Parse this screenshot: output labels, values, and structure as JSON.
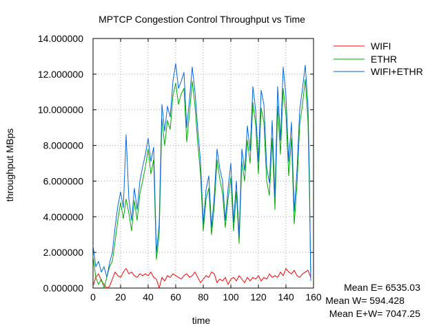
{
  "chart_data": {
    "type": "line",
    "title": "MPTCP Congestion Control Throughput vs Time",
    "xlabel": "time",
    "ylabel": "throughput MBps",
    "xlim": [
      0,
      160
    ],
    "ylim": [
      0,
      14
    ],
    "x_ticks": [
      "0",
      "20",
      "40",
      "60",
      "80",
      "100",
      "120",
      "140",
      "160"
    ],
    "y_ticks": [
      "0.000000",
      "2.000000",
      "4.000000",
      "6.000000",
      "8.000000",
      "10.000000",
      "12.000000",
      "14.000000"
    ],
    "grid": true,
    "legend_position": "top-right outside",
    "series": [
      {
        "name": "WIFI",
        "color": "#ff0000",
        "x": [
          0,
          2,
          4,
          6,
          8,
          10,
          12,
          14,
          16,
          18,
          20,
          22,
          24,
          26,
          28,
          30,
          32,
          34,
          36,
          38,
          40,
          42,
          44,
          46,
          48,
          50,
          52,
          54,
          56,
          58,
          60,
          62,
          64,
          66,
          68,
          70,
          72,
          74,
          76,
          78,
          80,
          82,
          84,
          86,
          88,
          90,
          92,
          94,
          96,
          98,
          100,
          102,
          104,
          106,
          108,
          110,
          112,
          114,
          116,
          118,
          120,
          122,
          124,
          126,
          128,
          130,
          132,
          134,
          136,
          138,
          140,
          142,
          144,
          146,
          148,
          150,
          152,
          154,
          156,
          157,
          158
        ],
        "values": [
          0.1,
          0.6,
          0.8,
          0.4,
          0.2,
          0.0,
          0.1,
          0.5,
          0.9,
          0.7,
          0.6,
          0.9,
          1.1,
          0.8,
          0.9,
          0.7,
          0.6,
          0.8,
          0.7,
          0.8,
          0.7,
          0.9,
          0.6,
          0.5,
          0.0,
          0.6,
          0.4,
          0.7,
          0.6,
          0.8,
          0.7,
          0.6,
          0.5,
          0.7,
          0.8,
          0.6,
          0.7,
          0.9,
          0.6,
          0.3,
          0.5,
          0.7,
          0.6,
          0.9,
          0.8,
          0.3,
          0.5,
          0.4,
          0.6,
          0.2,
          0.5,
          0.6,
          0.4,
          0.7,
          0.5,
          0.3,
          0.6,
          0.4,
          0.6,
          0.5,
          0.7,
          0.4,
          0.6,
          0.5,
          0.8,
          0.6,
          0.7,
          0.6,
          0.9,
          0.7,
          1.1,
          0.9,
          0.8,
          1.0,
          0.7,
          0.6,
          0.8,
          0.9,
          1.0,
          0.8,
          0.6
        ]
      },
      {
        "name": "ETHR",
        "color": "#00aa00",
        "x": [
          0,
          2,
          4,
          6,
          8,
          10,
          12,
          14,
          16,
          18,
          20,
          22,
          24,
          26,
          28,
          30,
          32,
          34,
          36,
          38,
          40,
          42,
          44,
          46,
          48,
          50,
          52,
          54,
          56,
          58,
          60,
          62,
          64,
          66,
          68,
          70,
          72,
          74,
          76,
          78,
          80,
          82,
          84,
          86,
          88,
          90,
          92,
          94,
          96,
          98,
          100,
          102,
          104,
          106,
          108,
          110,
          112,
          114,
          116,
          118,
          120,
          122,
          124,
          126,
          128,
          130,
          132,
          134,
          136,
          138,
          140,
          142,
          144,
          146,
          148,
          150,
          152,
          154,
          156,
          157,
          158
        ],
        "values": [
          1.8,
          0.6,
          0.2,
          0.5,
          0.0,
          0.6,
          1.2,
          1.5,
          2.6,
          3.8,
          4.8,
          3.9,
          5.0,
          4.2,
          3.2,
          4.9,
          3.8,
          5.3,
          6.0,
          6.8,
          7.8,
          6.4,
          7.2,
          1.6,
          3.0,
          9.5,
          8.0,
          9.4,
          8.9,
          10.8,
          11.5,
          10.3,
          10.9,
          11.2,
          8.2,
          9.8,
          11.6,
          10.2,
          8.1,
          6.4,
          3.2,
          5.0,
          5.6,
          3.0,
          4.6,
          7.2,
          6.1,
          5.3,
          3.4,
          5.0,
          6.2,
          3.2,
          5.4,
          2.5,
          7.1,
          6.0,
          8.3,
          7.0,
          10.4,
          9.2,
          6.4,
          10.1,
          9.3,
          6.0,
          5.2,
          8.4,
          4.4,
          10.2,
          7.5,
          11.2,
          9.7,
          6.3,
          8.4,
          3.6,
          5.8,
          9.2,
          10.3,
          11.7,
          9.3,
          5.6,
          0.6
        ]
      },
      {
        "name": "WIFI+ETHR",
        "color": "#0066dd",
        "x": [
          0,
          2,
          4,
          6,
          8,
          10,
          12,
          14,
          16,
          18,
          20,
          22,
          24,
          26,
          28,
          30,
          32,
          34,
          36,
          38,
          40,
          42,
          44,
          46,
          48,
          50,
          52,
          54,
          56,
          58,
          60,
          62,
          64,
          66,
          68,
          70,
          72,
          74,
          76,
          78,
          80,
          82,
          84,
          86,
          88,
          90,
          92,
          94,
          96,
          98,
          100,
          102,
          104,
          106,
          108,
          110,
          112,
          114,
          116,
          118,
          120,
          122,
          124,
          126,
          128,
          130,
          132,
          134,
          136,
          138,
          140,
          142,
          144,
          146,
          148,
          150,
          152,
          154,
          156,
          157,
          158
        ],
        "values": [
          2.4,
          1.2,
          1.5,
          0.9,
          1.2,
          0.6,
          1.4,
          2.0,
          3.4,
          4.6,
          5.4,
          4.5,
          8.6,
          5.0,
          3.8,
          5.6,
          4.4,
          6.0,
          6.8,
          7.5,
          8.4,
          7.1,
          7.9,
          2.0,
          3.6,
          10.3,
          8.8,
          10.2,
          9.6,
          11.6,
          12.6,
          11.2,
          11.6,
          12.1,
          9.0,
          10.6,
          12.4,
          11.0,
          8.9,
          7.1,
          3.6,
          5.5,
          6.3,
          3.4,
          5.2,
          7.8,
          6.7,
          6.0,
          3.8,
          5.6,
          7.0,
          3.7,
          6.0,
          2.9,
          7.8,
          6.6,
          9.1,
          7.7,
          11.3,
          10.0,
          7.1,
          11.1,
          10.3,
          6.8,
          5.9,
          9.4,
          5.1,
          11.3,
          8.3,
          12.4,
          10.8,
          7.1,
          9.3,
          4.3,
          6.6,
          10.0,
          11.2,
          12.5,
          10.2,
          6.4,
          0.4
        ]
      }
    ]
  },
  "stats": {
    "mean_e": "Mean E= 6535.03",
    "mean_w": "Mean W= 594.428",
    "mean_ew": "Mean E+W= 7047.25"
  }
}
